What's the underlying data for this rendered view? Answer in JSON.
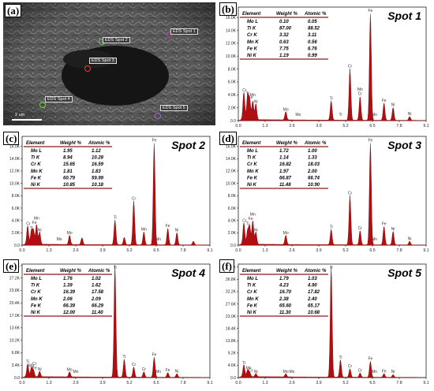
{
  "sem": {
    "label": "(a)",
    "scale_bar": "2 um",
    "spots": [
      "EDS Spot 1",
      "EDS Spot 2",
      "EDS Spot 3",
      "EDS Spot 4",
      "EDS Spot 5"
    ],
    "colors": {
      "spot1": "#cc3399",
      "spot2": "#55cc44",
      "spot3": "#e0403a",
      "spot4": "#66dd33",
      "spot5": "#9966cc"
    }
  },
  "table_headers": [
    "Element",
    "Weight %",
    "Atomic %"
  ],
  "colors": {
    "spectrum": "#b10e14",
    "table_line": "#8b1a1a",
    "axis": "#2244aa"
  },
  "chart_data": [
    {
      "id": "b",
      "label": "(b)",
      "title": "Spot 1",
      "type": "area",
      "xlim": [
        0,
        9.1
      ],
      "x_ticks": [
        "0.0",
        "1.3",
        "2.6",
        "3.9",
        "5.2",
        "6.5",
        "7.8",
        "9.1"
      ],
      "ylim": [
        0,
        17.6
      ],
      "y_ticks": [
        "0.0",
        "2.0K",
        "4.0K",
        "6.0K",
        "8.0K",
        "10.0K",
        "12.0K",
        "14.0K",
        "16.0K"
      ],
      "table": [
        [
          "Mo L",
          "0.10",
          "0.05"
        ],
        [
          "Ti K",
          "87.00",
          "88.52"
        ],
        [
          "Cr K",
          "3.32",
          "3.11"
        ],
        [
          "Mn K",
          "0.63",
          "0.56"
        ],
        [
          "Fe K",
          "7.75",
          "6.76"
        ],
        [
          "Ni K",
          "1.19",
          "0.99"
        ]
      ],
      "peaks": [
        [
          0.27,
          4.3
        ],
        [
          0.45,
          3.8
        ],
        [
          0.55,
          3.2
        ],
        [
          0.7,
          2.9
        ],
        [
          0.85,
          2.5
        ],
        [
          2.3,
          1.3
        ],
        [
          4.5,
          3.0
        ],
        [
          5.41,
          8.0
        ],
        [
          5.9,
          3.7
        ],
        [
          6.4,
          16.6
        ],
        [
          7.06,
          2.7
        ],
        [
          7.5,
          2.0
        ],
        [
          8.3,
          0.6
        ]
      ],
      "annotations": [
        [
          0.6,
          "Fe"
        ],
        [
          0.45,
          "Ti"
        ],
        [
          0.3,
          "Cr"
        ],
        [
          0.7,
          "Mn"
        ],
        [
          0.85,
          "Ni"
        ],
        [
          2.3,
          "Mo"
        ],
        [
          2.9,
          "Mo"
        ],
        [
          4.5,
          "Ti"
        ],
        [
          4.95,
          "Ti"
        ],
        [
          5.41,
          "Cr"
        ],
        [
          5.9,
          "Cr"
        ],
        [
          5.9,
          "Mn"
        ],
        [
          6.4,
          "Fe"
        ],
        [
          6.6,
          "Mn"
        ],
        [
          7.06,
          "Fe"
        ],
        [
          7.5,
          "Ni"
        ],
        [
          8.3,
          "Ni"
        ]
      ]
    },
    {
      "id": "c",
      "label": "(c)",
      "title": "Spot 2",
      "type": "area",
      "xlim": [
        0,
        9.1
      ],
      "x_ticks": [
        "0.0",
        "1.3",
        "2.6",
        "3.9",
        "5.2",
        "6.5",
        "7.8",
        "9.1"
      ],
      "ylim": [
        0,
        17.6
      ],
      "y_ticks": [
        "0.0",
        "2.0K",
        "4.0K",
        "6.0K",
        "8.0K",
        "10.0K",
        "12.0K",
        "14.0K",
        "16.0K"
      ],
      "table": [
        [
          "Mo L",
          "1.95",
          "1.12"
        ],
        [
          "Ti K",
          "8.94",
          "10.28"
        ],
        [
          "Cr K",
          "15.65",
          "16.59"
        ],
        [
          "Mn K",
          "1.81",
          "1.83"
        ],
        [
          "Fe K",
          "60.79",
          "59.99"
        ],
        [
          "Ni K",
          "10.85",
          "10.18"
        ]
      ],
      "peaks": [
        [
          0.27,
          3.0
        ],
        [
          0.45,
          2.2
        ],
        [
          0.55,
          2.3
        ],
        [
          0.7,
          3.2
        ],
        [
          0.85,
          2.0
        ],
        [
          2.3,
          1.5
        ],
        [
          2.9,
          1.1
        ],
        [
          4.5,
          4.0
        ],
        [
          4.95,
          1.2
        ],
        [
          5.41,
          7.1
        ],
        [
          5.9,
          2.1
        ],
        [
          6.4,
          16.5
        ],
        [
          7.06,
          2.7
        ],
        [
          7.5,
          2.0
        ],
        [
          8.3,
          0.6
        ]
      ],
      "annotations": [
        [
          0.6,
          "Fe"
        ],
        [
          0.45,
          "Ti"
        ],
        [
          0.3,
          "Cr"
        ],
        [
          0.7,
          "Mn"
        ],
        [
          0.85,
          "Ni"
        ],
        [
          1.8,
          "Mo"
        ],
        [
          2.3,
          "Mo"
        ],
        [
          4.5,
          "Ti"
        ],
        [
          5.41,
          "Cr"
        ],
        [
          5.9,
          "Mn"
        ],
        [
          6.4,
          "Fe"
        ],
        [
          6.6,
          "Mn"
        ],
        [
          7.06,
          "Fe"
        ],
        [
          7.5,
          "Ni"
        ]
      ]
    },
    {
      "id": "d",
      "label": "(d)",
      "title": "Spot 3",
      "type": "area",
      "xlim": [
        0,
        9.1
      ],
      "x_ticks": [
        "0.0",
        "1.3",
        "2.6",
        "3.9",
        "5.2",
        "6.5",
        "7.8",
        "9.1"
      ],
      "ylim": [
        0,
        17.6
      ],
      "y_ticks": [
        "0.0",
        "2.0K",
        "4.0K",
        "6.0K",
        "8.0K",
        "10.0K",
        "12.0K",
        "14.0K",
        "16.0K"
      ],
      "table": [
        [
          "Mo L",
          "1.72",
          "1.00"
        ],
        [
          "Ti K",
          "1.14",
          "1.33"
        ],
        [
          "Cr K",
          "16.82",
          "18.03"
        ],
        [
          "Mn K",
          "1.97",
          "2.00"
        ],
        [
          "Fe K",
          "66.87",
          "66.74"
        ],
        [
          "Ni K",
          "11.48",
          "10.90"
        ]
      ],
      "peaks": [
        [
          0.27,
          3.5
        ],
        [
          0.45,
          2.2
        ],
        [
          0.55,
          3.0
        ],
        [
          0.7,
          3.8
        ],
        [
          0.85,
          2.0
        ],
        [
          2.3,
          1.5
        ],
        [
          4.5,
          2.5
        ],
        [
          5.41,
          8.0
        ],
        [
          5.9,
          2.3
        ],
        [
          6.4,
          16.5
        ],
        [
          7.06,
          3.0
        ],
        [
          7.5,
          2.2
        ],
        [
          8.3,
          0.6
        ]
      ],
      "annotations": [
        [
          0.6,
          "Fe"
        ],
        [
          0.45,
          "Ti"
        ],
        [
          0.3,
          "Cr"
        ],
        [
          0.7,
          "Mn"
        ],
        [
          0.85,
          "Ni"
        ],
        [
          2.3,
          "Mo"
        ],
        [
          4.5,
          "Ti"
        ],
        [
          5.41,
          "Cr"
        ],
        [
          5.9,
          "Cr"
        ],
        [
          6.4,
          "Fe"
        ],
        [
          6.6,
          "Mn"
        ],
        [
          7.06,
          "Fe"
        ],
        [
          7.5,
          "Ni"
        ],
        [
          8.3,
          "Ni"
        ]
      ]
    },
    {
      "id": "e",
      "label": "(e)",
      "title": "Spot 4",
      "type": "area",
      "xlim": [
        0,
        9.1
      ],
      "x_ticks": [
        "0.0",
        "1.3",
        "2.6",
        "3.9",
        "5.2",
        "6.5",
        "7.8",
        "9.1"
      ],
      "ylim": [
        0,
        31.0
      ],
      "y_ticks": [
        "0.0",
        "3.4K",
        "6.8K",
        "10.2K",
        "13.6K",
        "17.0K",
        "20.4K",
        "23.8K",
        "27.2K",
        "30.6K"
      ],
      "table": [
        [
          "Mo L",
          "1.76",
          "1.02"
        ],
        [
          "Ti K",
          "1.39",
          "1.62"
        ],
        [
          "Cr K",
          "16.39",
          "17.58"
        ],
        [
          "Mn K",
          "2.06",
          "2.09"
        ],
        [
          "Fe K",
          "66.39",
          "66.29"
        ],
        [
          "Ni K",
          "12.00",
          "11.40"
        ]
      ],
      "peaks": [
        [
          0.27,
          3.5
        ],
        [
          0.45,
          2.5
        ],
        [
          0.55,
          1.8
        ],
        [
          0.85,
          1.5
        ],
        [
          2.3,
          1.4
        ],
        [
          4.5,
          30.6
        ],
        [
          4.95,
          4.9
        ],
        [
          5.41,
          2.8
        ],
        [
          5.9,
          1.5
        ],
        [
          6.4,
          5.5
        ],
        [
          7.06,
          1.3
        ],
        [
          7.5,
          1.0
        ]
      ],
      "annotations": [
        [
          0.27,
          "Ti"
        ],
        [
          0.6,
          "Fe"
        ],
        [
          0.45,
          "Mn"
        ],
        [
          0.85,
          "Ni"
        ],
        [
          0.6,
          "Cr"
        ],
        [
          2.3,
          "Mo"
        ],
        [
          2.6,
          "Mo"
        ],
        [
          4.5,
          "Ti"
        ],
        [
          4.95,
          "Ti"
        ],
        [
          5.41,
          "Cr"
        ],
        [
          5.9,
          "Cr"
        ],
        [
          6.4,
          "Fe"
        ],
        [
          6.6,
          "Mn"
        ],
        [
          7.06,
          "Fe"
        ],
        [
          7.5,
          "Ni"
        ]
      ]
    },
    {
      "id": "f",
      "label": "(f)",
      "title": "Spot 5",
      "type": "area",
      "xlim": [
        0,
        9.1
      ],
      "x_ticks": [
        "0.0",
        "1.3",
        "2.6",
        "3.9",
        "5.2",
        "6.5",
        "7.8",
        "9.1"
      ],
      "ylim": [
        0,
        42.5
      ],
      "y_ticks": [
        "0.0",
        "4.6K",
        "9.2K",
        "13.8K",
        "18.4K",
        "23.0K",
        "27.6K",
        "32.2K",
        "36.8K",
        "41.4K"
      ],
      "table": [
        [
          "Mo L",
          "1.79",
          "1.03"
        ],
        [
          "Ti K",
          "4.23",
          "4.90"
        ],
        [
          "Cr K",
          "16.70",
          "17.82"
        ],
        [
          "Mn K",
          "2.38",
          "2.40"
        ],
        [
          "Fe K",
          "65.60",
          "65.17"
        ],
        [
          "Ni K",
          "11.30",
          "10.68"
        ]
      ],
      "peaks": [
        [
          0.27,
          4.5
        ],
        [
          0.45,
          2.5
        ],
        [
          0.55,
          1.6
        ],
        [
          0.85,
          1.2
        ],
        [
          2.3,
          1.2
        ],
        [
          4.5,
          41.4
        ],
        [
          4.95,
          6.5
        ],
        [
          5.41,
          3.2
        ],
        [
          5.9,
          1.6
        ],
        [
          6.4,
          6.0
        ],
        [
          7.06,
          1.4
        ],
        [
          7.5,
          1.0
        ]
      ],
      "annotations": [
        [
          0.27,
          "Ti"
        ],
        [
          0.5,
          "Mn"
        ],
        [
          0.6,
          "Cr"
        ],
        [
          0.85,
          "Ni"
        ],
        [
          2.3,
          "Mo"
        ],
        [
          2.6,
          "Mo"
        ],
        [
          4.5,
          "Ti"
        ],
        [
          4.95,
          "Ti"
        ],
        [
          5.41,
          "Cr"
        ],
        [
          5.9,
          "Cr"
        ],
        [
          6.4,
          "Fe"
        ],
        [
          6.6,
          "Mn"
        ],
        [
          7.06,
          "Fe"
        ],
        [
          7.5,
          "Ni"
        ]
      ]
    }
  ]
}
